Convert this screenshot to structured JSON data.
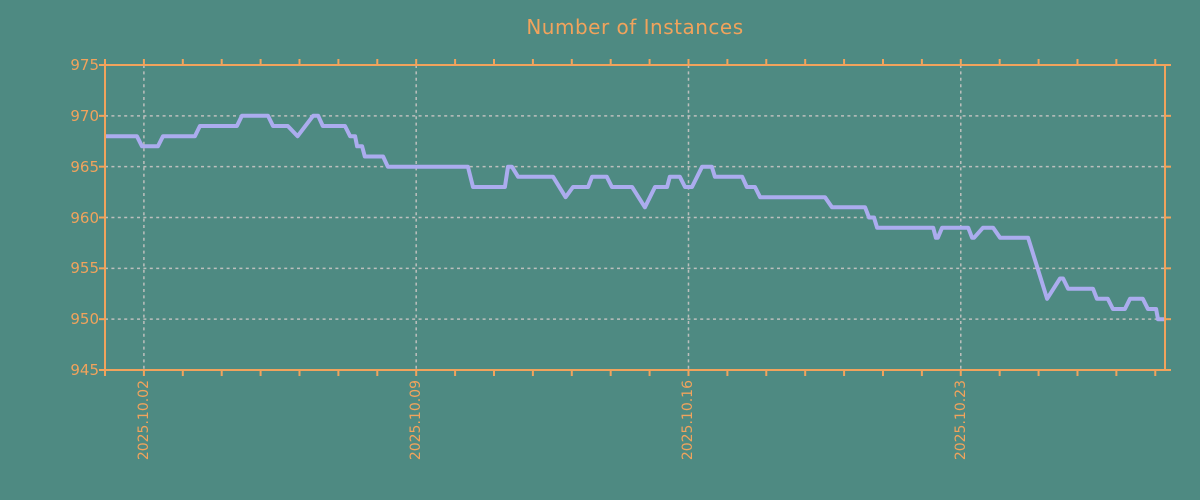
{
  "title": "Number of Instances",
  "colors": {
    "background": "#4E8A82",
    "axis": "#F1A35C",
    "text": "#F1A35C",
    "line": "#ABACEE",
    "grid": "#BDBFBD"
  },
  "chart_data": {
    "type": "line",
    "title": "Number of Instances",
    "xlabel": "",
    "ylabel": "",
    "grid": "dotted",
    "legend": null,
    "ylim": [
      945,
      975
    ],
    "y_ticks": [
      945,
      950,
      955,
      960,
      965,
      970,
      975
    ],
    "x_axis_unit": "days since 2025.10.01",
    "xlim": [
      0,
      27.25
    ],
    "x_minor_tick_interval_days": 1,
    "x_major_ticks": [
      {
        "day": 1,
        "label": "2025.10.02"
      },
      {
        "day": 8,
        "label": "2025.10.09"
      },
      {
        "day": 15,
        "label": "2025.10.16"
      },
      {
        "day": 22,
        "label": "2025.10.23"
      }
    ],
    "series": [
      {
        "name": "instances",
        "points": [
          [
            0.0,
            968
          ],
          [
            0.82,
            968
          ],
          [
            0.95,
            967
          ],
          [
            1.36,
            967
          ],
          [
            1.49,
            968
          ],
          [
            2.31,
            968
          ],
          [
            2.44,
            969
          ],
          [
            3.39,
            969
          ],
          [
            3.52,
            970
          ],
          [
            4.19,
            970
          ],
          [
            4.32,
            969
          ],
          [
            4.7,
            969
          ],
          [
            4.95,
            968
          ],
          [
            5.35,
            970
          ],
          [
            5.48,
            970
          ],
          [
            5.6,
            969
          ],
          [
            6.17,
            969
          ],
          [
            6.3,
            968
          ],
          [
            6.43,
            968
          ],
          [
            6.48,
            967
          ],
          [
            6.61,
            967
          ],
          [
            6.68,
            966
          ],
          [
            7.15,
            966
          ],
          [
            7.27,
            965
          ],
          [
            9.33,
            965
          ],
          [
            9.46,
            963
          ],
          [
            10.28,
            963
          ],
          [
            10.36,
            965
          ],
          [
            10.46,
            965
          ],
          [
            10.62,
            964
          ],
          [
            11.52,
            964
          ],
          [
            11.84,
            962
          ],
          [
            12.03,
            963
          ],
          [
            12.42,
            963
          ],
          [
            12.52,
            964
          ],
          [
            12.9,
            964
          ],
          [
            13.03,
            963
          ],
          [
            13.55,
            963
          ],
          [
            13.88,
            961
          ],
          [
            14.14,
            963
          ],
          [
            14.45,
            963
          ],
          [
            14.52,
            964
          ],
          [
            14.78,
            964
          ],
          [
            14.91,
            963
          ],
          [
            15.09,
            963
          ],
          [
            15.35,
            965
          ],
          [
            15.6,
            965
          ],
          [
            15.68,
            964
          ],
          [
            16.38,
            964
          ],
          [
            16.5,
            963
          ],
          [
            16.71,
            963
          ],
          [
            16.84,
            962
          ],
          [
            18.51,
            962
          ],
          [
            18.69,
            961
          ],
          [
            19.54,
            961
          ],
          [
            19.64,
            960
          ],
          [
            19.77,
            960
          ],
          [
            19.85,
            959
          ],
          [
            21.29,
            959
          ],
          [
            21.36,
            958
          ],
          [
            21.41,
            958
          ],
          [
            21.52,
            959
          ],
          [
            22.19,
            959
          ],
          [
            22.29,
            958
          ],
          [
            22.34,
            958
          ],
          [
            22.57,
            959
          ],
          [
            22.83,
            959
          ],
          [
            23.01,
            958
          ],
          [
            23.73,
            958
          ],
          [
            24.22,
            952
          ],
          [
            24.55,
            954
          ],
          [
            24.63,
            954
          ],
          [
            24.76,
            953
          ],
          [
            25.4,
            953
          ],
          [
            25.5,
            952
          ],
          [
            25.78,
            952
          ],
          [
            25.91,
            951
          ],
          [
            26.22,
            951
          ],
          [
            26.35,
            952
          ],
          [
            26.68,
            952
          ],
          [
            26.81,
            951
          ],
          [
            27.02,
            951
          ],
          [
            27.07,
            950
          ],
          [
            27.25,
            950
          ]
        ]
      }
    ]
  }
}
